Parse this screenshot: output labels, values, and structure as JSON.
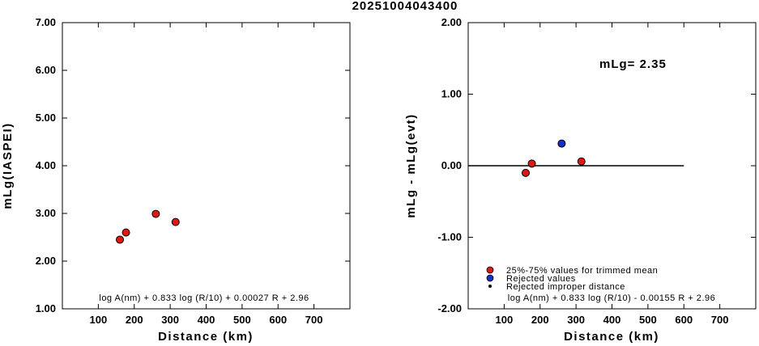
{
  "title": "20251004043400",
  "colors": {
    "accepted": "#dd1a12",
    "rejected": "#1530c8",
    "improper": "#000000",
    "axis": "#000000"
  },
  "chart_data": [
    {
      "type": "scatter",
      "xlabel": "Distance (km)",
      "ylabel": "mLg(IASPEI)",
      "xlim": [
        0,
        800
      ],
      "ylim": [
        1.0,
        7.0
      ],
      "x_ticks": [
        "100",
        "200",
        "300",
        "400",
        "500",
        "600",
        "700"
      ],
      "x_tick_values": [
        100,
        200,
        300,
        400,
        500,
        600,
        700
      ],
      "y_ticks": [
        "1.00",
        "2.00",
        "3.00",
        "4.00",
        "5.00",
        "6.00",
        "7.00"
      ],
      "y_tick_values": [
        1,
        2,
        3,
        4,
        5,
        6,
        7
      ],
      "formula": "log A(nm) + 0.833 log (R/10) + 0.00027 R + 2.96",
      "points": [
        {
          "x": 160,
          "y": 2.45,
          "class": "accepted"
        },
        {
          "x": 177,
          "y": 2.6,
          "class": "accepted"
        },
        {
          "x": 260,
          "y": 2.99,
          "class": "accepted"
        },
        {
          "x": 315,
          "y": 2.82,
          "class": "accepted"
        }
      ]
    },
    {
      "type": "scatter",
      "xlabel": "Distance (km)",
      "ylabel": "mLg - mLg(evt)",
      "xlim": [
        0,
        800
      ],
      "ylim": [
        -2.0,
        2.0
      ],
      "x_ticks": [
        "100",
        "200",
        "300",
        "400",
        "500",
        "600",
        "700"
      ],
      "x_tick_values": [
        100,
        200,
        300,
        400,
        500,
        600,
        700
      ],
      "y_ticks": [
        "-2.00",
        "-1.00",
        "0.00",
        "1.00",
        "2.00"
      ],
      "y_tick_values": [
        -2,
        -1,
        0,
        1,
        2
      ],
      "annotation": "mLg= 2.35",
      "reference_line": {
        "y": 0.0,
        "x_start": 0,
        "x_end": 600
      },
      "formula": "log A(nm) + 0.833 log (R/10) - 0.00155 R  + 2.96",
      "legend": [
        {
          "label": "25%-75% values for trimmed mean",
          "class": "accepted"
        },
        {
          "label": "Rejected values",
          "class": "rejected"
        },
        {
          "label": "Rejected improper distance",
          "class": "improper"
        }
      ],
      "points": [
        {
          "x": 160,
          "y": -0.1,
          "class": "accepted"
        },
        {
          "x": 177,
          "y": 0.03,
          "class": "accepted"
        },
        {
          "x": 260,
          "y": 0.31,
          "class": "rejected"
        },
        {
          "x": 315,
          "y": 0.06,
          "class": "accepted"
        }
      ]
    }
  ]
}
